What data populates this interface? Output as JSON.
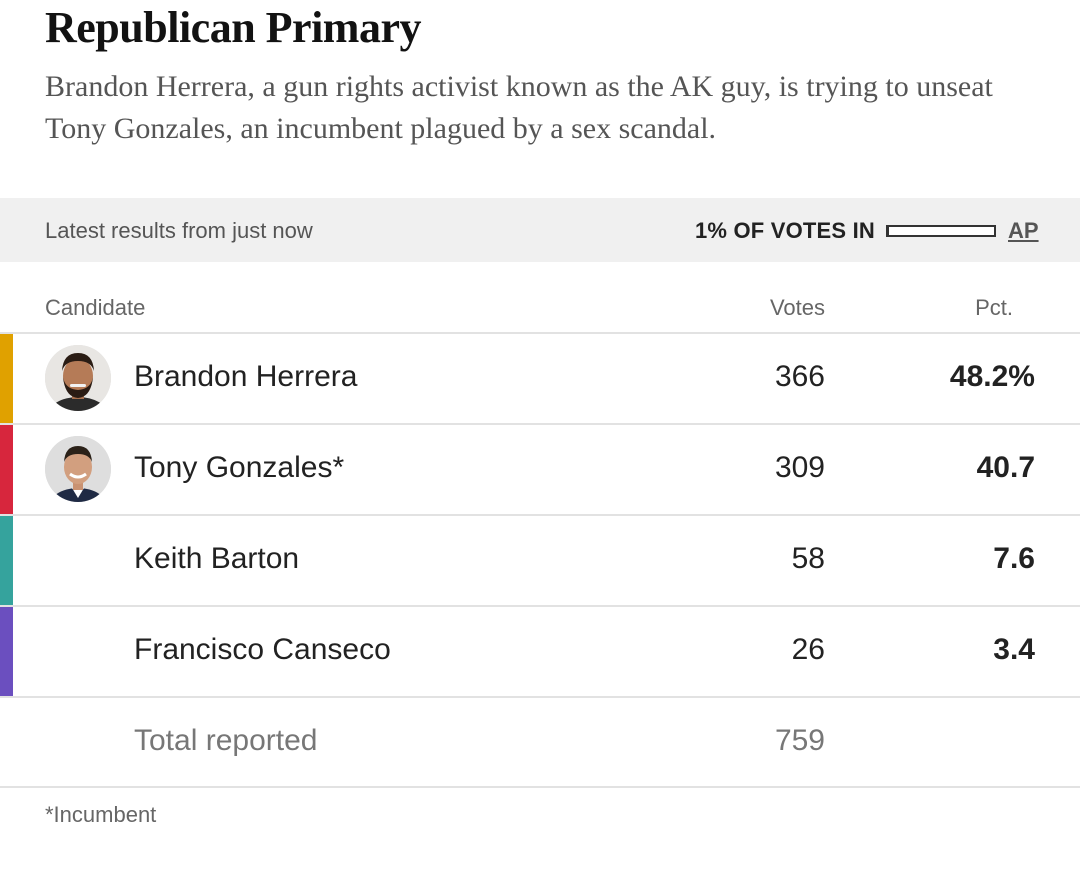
{
  "header": {
    "title": "Republican Primary",
    "subtitle": "Brandon Herrera, a gun rights activist known as the AK guy, is trying to unseat Tony Gonzales, an incumbent plagued by a sex scandal."
  },
  "status": {
    "latest": "Latest results from just now",
    "votes_in_label": "1% OF VOTES IN",
    "votes_in_fraction": 0.01,
    "source": "AP"
  },
  "table": {
    "columns": {
      "candidate": "Candidate",
      "votes": "Votes",
      "pct": "Pct."
    },
    "rows": [
      {
        "name": "Brandon Herrera",
        "votes": "366",
        "pct": "48.2%",
        "color": "#e0a100",
        "photo": "herrera-photo"
      },
      {
        "name": "Tony Gonzales*",
        "votes": "309",
        "pct": "40.7",
        "color": "#d7263d",
        "photo": "gonzales-photo"
      },
      {
        "name": "Keith Barton",
        "votes": "58",
        "pct": "7.6",
        "color": "#35a39d"
      },
      {
        "name": "Francisco Canseco",
        "votes": "26",
        "pct": "3.4",
        "color": "#6b4fbf"
      }
    ],
    "total": {
      "label": "Total reported",
      "votes": "759"
    }
  },
  "footnote": "*Incumbent"
}
